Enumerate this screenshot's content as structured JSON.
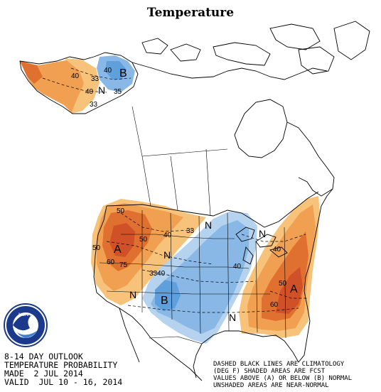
{
  "title": "Temperature",
  "outlook": {
    "line1": "8-14 DAY OUTLOOK",
    "line2": "TEMPERATURE PROBABILITY",
    "line3": "MADE  2 JUL 2014",
    "line4": "VALID  JUL 10 - 16, 2014"
  },
  "legend_note": {
    "line1": "DASHED BLACK LINES ARE CLIMATOLOGY",
    "line2": "(DEG F) SHADED AREAS ARE FCST",
    "line3": "VALUES ABOVE (A) OR BELOW (B) NORMAL",
    "line4": "UNSHADED AREAS ARE NEAR-NORMAL"
  },
  "logo": {
    "text": "NOAA",
    "ring_text": "NATIONAL OCEANIC AND ATMOSPHERIC ADMINISTRATION"
  },
  "colors": {
    "above_light": "#f7c27a",
    "above_mid": "#f0a050",
    "above_strong": "#e07030",
    "above_darkest": "#d05028",
    "below_light": "#b5d2ee",
    "below_mid": "#8ab8e6",
    "below_strong": "#5e9fdc",
    "noaa_blue": "#1b3a8c"
  },
  "map_labels": {
    "alaska_N": "N",
    "alaska_B": "B",
    "alaska_40a": "40",
    "alaska_40b": "40",
    "alaska_33a": "33",
    "alaska_33b": "33",
    "alaska_35": "35",
    "alaska_40c": "40",
    "west_A": "A",
    "west_50a": "50",
    "west_50b": "50",
    "west_50c": "50",
    "west_60": "60",
    "west_75": "75",
    "west_40": "40",
    "plains_33": "33",
    "plains_N1": "N",
    "plains_N2": "N",
    "south_B": "B",
    "south_3340": "3340",
    "sw_N": "N",
    "gulf_N": "N",
    "gulf_40": "40",
    "east_N": "N",
    "east_A": "A",
    "east_50": "50",
    "east_40": "40",
    "east_60": "60"
  }
}
